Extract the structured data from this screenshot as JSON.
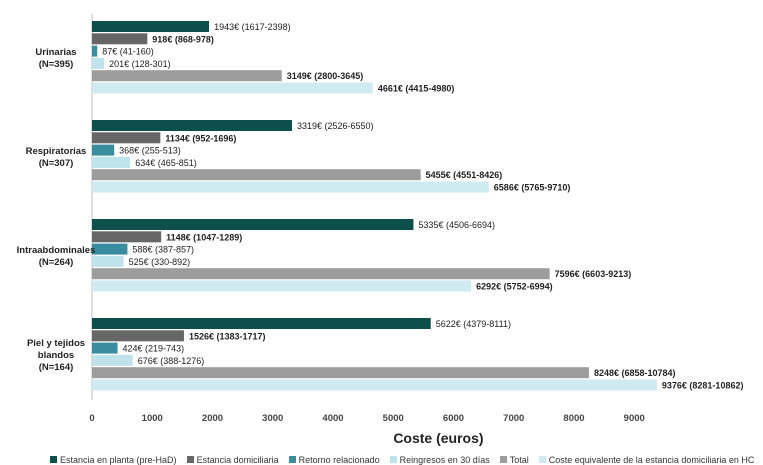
{
  "chart_data": {
    "type": "bar",
    "orientation": "horizontal",
    "xlabel": "Coste (euros)",
    "xlim": [
      0,
      10000
    ],
    "xticks": [
      0,
      1000,
      2000,
      3000,
      4000,
      5000,
      6000,
      7000,
      8000,
      9000
    ],
    "grid": false,
    "legend_position": "bottom",
    "categories": [
      {
        "lines": [
          "Urinarias",
          "(N=395)"
        ]
      },
      {
        "lines": [
          "Respiratorias",
          "(N=307)"
        ]
      },
      {
        "lines": [
          "Intraabdominales",
          "(N=264)"
        ]
      },
      {
        "lines": [
          "Piel y tejidos",
          "blandos",
          "(N=164)"
        ]
      }
    ],
    "series": [
      {
        "name": "Estancia en planta (pre-HaD)",
        "color": "#0d4f4a",
        "values": [
          1943,
          3319,
          5335,
          5622
        ],
        "labels": [
          "1943€ (1617-2398)",
          "3319€ (2526-6550)",
          "5335€ (4506-6694)",
          "5622€ (4379-8111)"
        ],
        "bold": false
      },
      {
        "name": "Estancia domiciliaria",
        "color": "#666666",
        "values": [
          918,
          1134,
          1148,
          1526
        ],
        "labels": [
          "918€ (868-978)",
          "1134€ (952-1696)",
          "1148€ (1047-1289)",
          "1526€ (1383-1717)"
        ],
        "bold": true
      },
      {
        "name": "Retorno relacionado",
        "color": "#3a8d9e",
        "values": [
          87,
          368,
          588,
          424
        ],
        "labels": [
          "87€ (41-160)",
          "368€ (255-513)",
          "588€ (387-857)",
          "424€ (219-743)"
        ],
        "bold": false
      },
      {
        "name": "Reingresos en 30 días",
        "color": "#bfe3ea",
        "values": [
          201,
          634,
          525,
          676
        ],
        "labels": [
          "201€ (128-301)",
          "634€ (465-851)",
          "525€ (330-892)",
          "676€ (388-1276)"
        ],
        "bold": false
      },
      {
        "name": "Total",
        "color": "#9c9c9c",
        "values": [
          3149,
          5455,
          7596,
          8248
        ],
        "labels": [
          "3149€ (2800-3645)",
          "5455€ (4551-8426)",
          "7596€ (6603-9213)",
          "8248€ (6858-10784)"
        ],
        "bold": true
      },
      {
        "name": "Coste equivalente de la estancia domiciliaria en HC",
        "color": "#cfeaf0",
        "values": [
          4661,
          6586,
          6292,
          9376
        ],
        "labels": [
          "4661€ (4415-4980)",
          "6586€ (5765-9710)",
          "6292€ (5752-6994)",
          "9376€ (8281-10862)"
        ],
        "bold": true
      }
    ]
  }
}
